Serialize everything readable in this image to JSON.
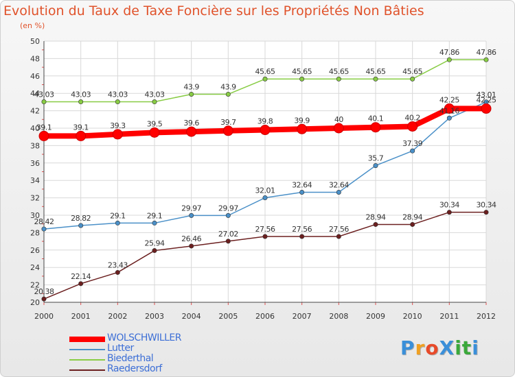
{
  "title": "Evolution du Taux de Taxe Foncière sur les Propriétés Non Bâties",
  "subtitle": "(en %)",
  "logo": {
    "text": "ProXiti",
    "letter_colors": [
      "#3a8fd9",
      "#f0a022",
      "#e84a2a",
      "#3a8fd9",
      "#3aa83a",
      "#3aa83a",
      "#3a8fd9"
    ]
  },
  "chart_data": {
    "type": "line",
    "title": "Evolution du Taux de Taxe Foncière sur les Propriétés Non Bâties",
    "ylabel": "(en %)",
    "xlabel": "",
    "x": [
      "2000",
      "2001",
      "2002",
      "2003",
      "2004",
      "2005",
      "2006",
      "2007",
      "2008",
      "2009",
      "2010",
      "2011",
      "2012"
    ],
    "ylim": [
      20,
      50
    ],
    "yticks": [
      "20",
      "22",
      "24",
      "26",
      "28",
      "30",
      "32",
      "34",
      "36",
      "38",
      "40",
      "42",
      "44",
      "46",
      "48",
      "50"
    ],
    "grid": true,
    "legend_position": "bottom-left",
    "series": [
      {
        "name": "WOLSCHWILLER",
        "color": "#ff0000",
        "values": [
          39.1,
          39.1,
          39.3,
          39.5,
          39.6,
          39.7,
          39.8,
          39.9,
          40,
          40.1,
          40.2,
          42.25,
          42.25
        ],
        "labels": [
          "39.1",
          "39.1",
          "39.3",
          "39.5",
          "39.6",
          "39.7",
          "39.8",
          "39.9",
          "40",
          "40.1",
          "40.2",
          "42.25",
          "42.25"
        ]
      },
      {
        "name": "Lutter",
        "color": "#4a90c8",
        "values": [
          28.42,
          28.82,
          29.1,
          29.1,
          29.97,
          29.97,
          32.01,
          32.64,
          32.64,
          35.7,
          37.39,
          41.16,
          43.01
        ],
        "labels": [
          "28.42",
          "28.82",
          "29.1",
          "29.1",
          "29.97",
          "29.97",
          "32.01",
          "32.64",
          "32.64",
          "35.7",
          "37.39",
          "41.16",
          "43.01"
        ]
      },
      {
        "name": "Biederthal",
        "color": "#88cc44",
        "values": [
          43.03,
          43.03,
          43.03,
          43.03,
          43.9,
          43.9,
          45.65,
          45.65,
          45.65,
          45.65,
          45.65,
          47.86,
          47.86
        ],
        "labels": [
          "43.03",
          "43.03",
          "43.03",
          "43.03",
          "43.9",
          "43.9",
          "45.65",
          "45.65",
          "45.65",
          "45.65",
          "45.65",
          "47.86",
          "47.86"
        ]
      },
      {
        "name": "Raedersdorf",
        "color": "#6b1f1f",
        "values": [
          20.38,
          22.14,
          23.43,
          25.94,
          26.46,
          27.02,
          27.56,
          27.56,
          27.56,
          28.94,
          28.94,
          30.34,
          30.34
        ],
        "labels": [
          "20.38",
          "22.14",
          "23.43",
          "25.94",
          "26.46",
          "27.02",
          "27.56",
          "27.56",
          "27.56",
          "28.94",
          "28.94",
          "30.34",
          "30.34"
        ]
      }
    ]
  }
}
